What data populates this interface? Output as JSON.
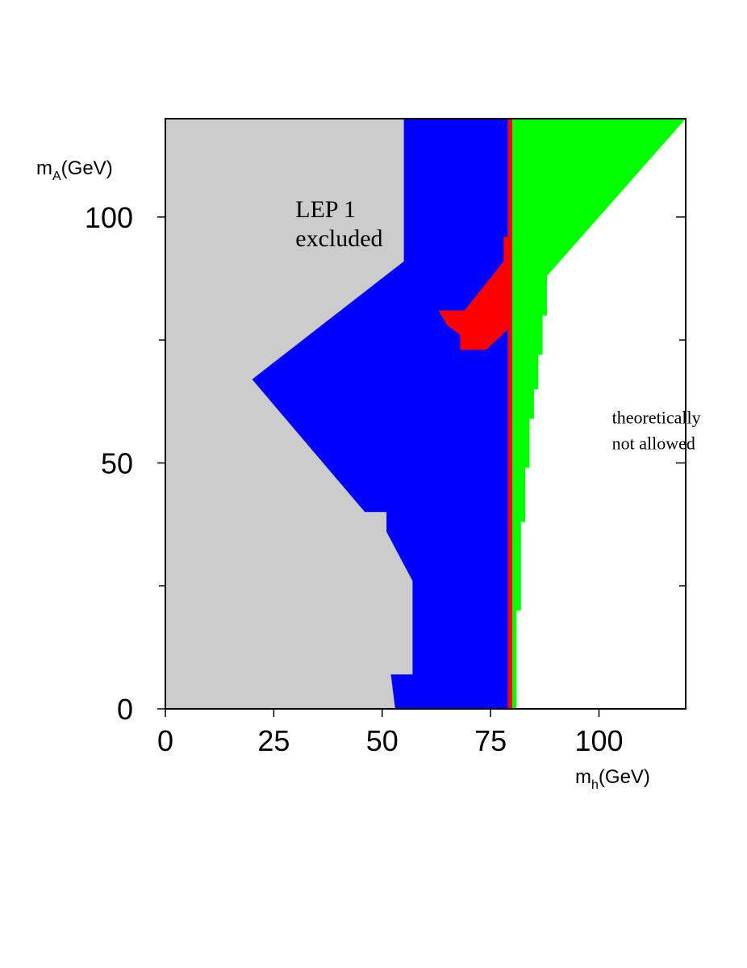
{
  "chart_data": {
    "type": "area",
    "xlabel": {
      "main": "m",
      "sub": "h",
      "unit": "(GeV)"
    },
    "ylabel": {
      "main": "m",
      "sub": "A",
      "unit": "(GeV)"
    },
    "xlim": [
      0,
      120
    ],
    "ylim": [
      0,
      120
    ],
    "x_ticks": [
      0,
      25,
      50,
      75,
      100
    ],
    "y_ticks": [
      0,
      50,
      100
    ],
    "x_minor_ticks": [],
    "y_minor_ticks": [
      25,
      75
    ],
    "grid": false,
    "colors": {
      "lep1": "#cccccc",
      "blue": "#0000ff",
      "red": "#ff0000",
      "green": "#00ff00",
      "axis": "#000000"
    },
    "regions": [
      {
        "key": "lep1",
        "color": "#cccccc",
        "polygon": [
          [
            0,
            0
          ],
          [
            53,
            0
          ],
          [
            52,
            7
          ],
          [
            57,
            7
          ],
          [
            57,
            26
          ],
          [
            51,
            36
          ],
          [
            51,
            40
          ],
          [
            46,
            40
          ],
          [
            20,
            67
          ],
          [
            55,
            91
          ],
          [
            55,
            120
          ],
          [
            0,
            120
          ]
        ]
      },
      {
        "key": "blue",
        "color": "#0000ff",
        "polygon": [
          [
            53,
            0
          ],
          [
            79,
            0
          ],
          [
            79,
            120
          ],
          [
            55,
            120
          ],
          [
            55,
            91
          ],
          [
            20,
            67
          ],
          [
            46,
            40
          ],
          [
            51,
            40
          ],
          [
            51,
            36
          ],
          [
            57,
            26
          ],
          [
            57,
            7
          ],
          [
            52,
            7
          ]
        ]
      },
      {
        "key": "red_strip",
        "color": "#ff0000",
        "polygon": [
          [
            79,
            0
          ],
          [
            80,
            0
          ],
          [
            80,
            120
          ],
          [
            79,
            120
          ]
        ]
      },
      {
        "key": "red_patch",
        "color": "#ff0000",
        "polygon": [
          [
            63,
            81
          ],
          [
            69,
            81
          ],
          [
            78,
            91
          ],
          [
            78,
            96
          ],
          [
            80,
            96
          ],
          [
            80,
            78
          ],
          [
            74,
            73
          ],
          [
            68,
            73
          ],
          [
            68,
            76
          ],
          [
            65,
            78
          ]
        ]
      },
      {
        "key": "green",
        "color": "#00ff00",
        "polygon": [
          [
            80,
            0
          ],
          [
            81,
            0
          ],
          [
            81,
            20
          ],
          [
            82,
            20
          ],
          [
            82,
            38
          ],
          [
            83,
            38
          ],
          [
            83,
            49
          ],
          [
            84,
            49
          ],
          [
            84,
            59
          ],
          [
            85,
            59
          ],
          [
            85,
            65
          ],
          [
            86,
            65
          ],
          [
            86,
            72
          ],
          [
            87,
            72
          ],
          [
            87,
            80
          ],
          [
            88,
            80
          ],
          [
            88,
            88
          ],
          [
            120,
            120
          ],
          [
            80,
            120
          ]
        ]
      }
    ],
    "annotations": [
      {
        "lines": [
          "LEP 1",
          "excluded"
        ],
        "x": 30,
        "y": 100,
        "style": "big"
      },
      {
        "lines": [
          "theoretically",
          "not allowed"
        ],
        "x": 103,
        "y": 58,
        "style": "small"
      }
    ]
  }
}
